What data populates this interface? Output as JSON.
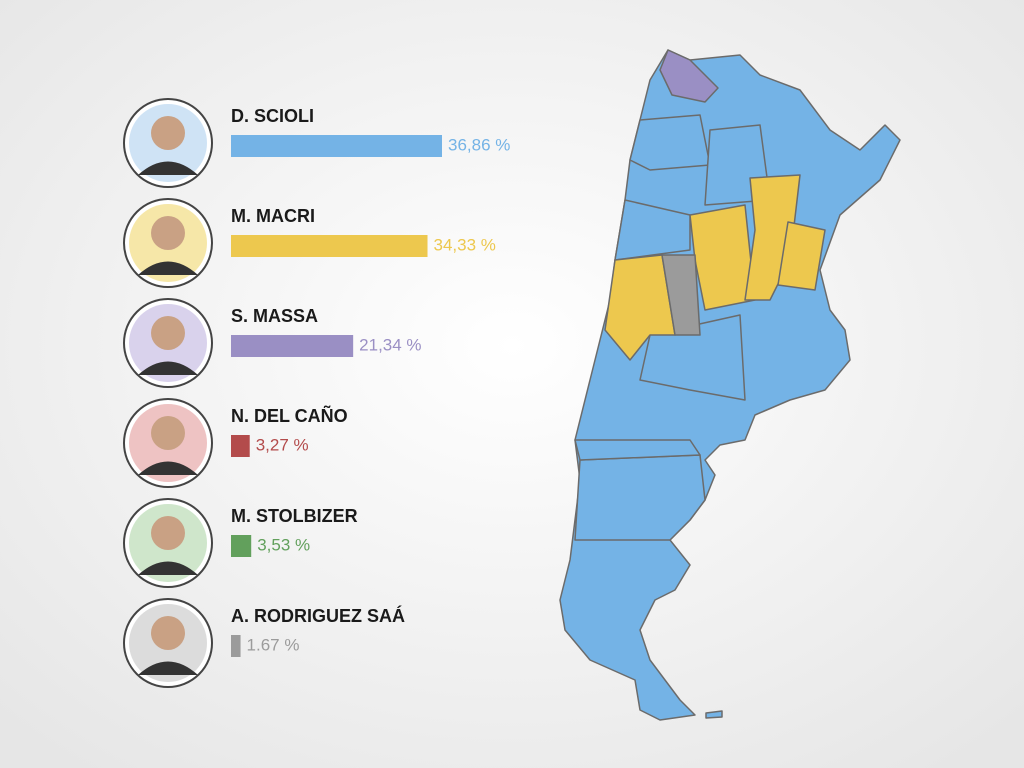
{
  "chart_data": {
    "type": "bar",
    "categories": [
      "D. SCIOLI",
      "M. MACRI",
      "S. MASSA",
      "N. DEL CAÑO",
      "M. STOLBIZER",
      "A. RODRIGUEZ SAÁ"
    ],
    "values": [
      36.86,
      34.33,
      21.34,
      3.27,
      3.53,
      1.67
    ],
    "value_labels": [
      "36,86 %",
      "34,33 %",
      "21,34 %",
      "3,27 %",
      "3,53 %",
      "1.67 %"
    ],
    "colors": [
      "#74b3e6",
      "#edc84e",
      "#9a8fc4",
      "#b34b4b",
      "#62a05c",
      "#9b9b9b"
    ]
  }
}
